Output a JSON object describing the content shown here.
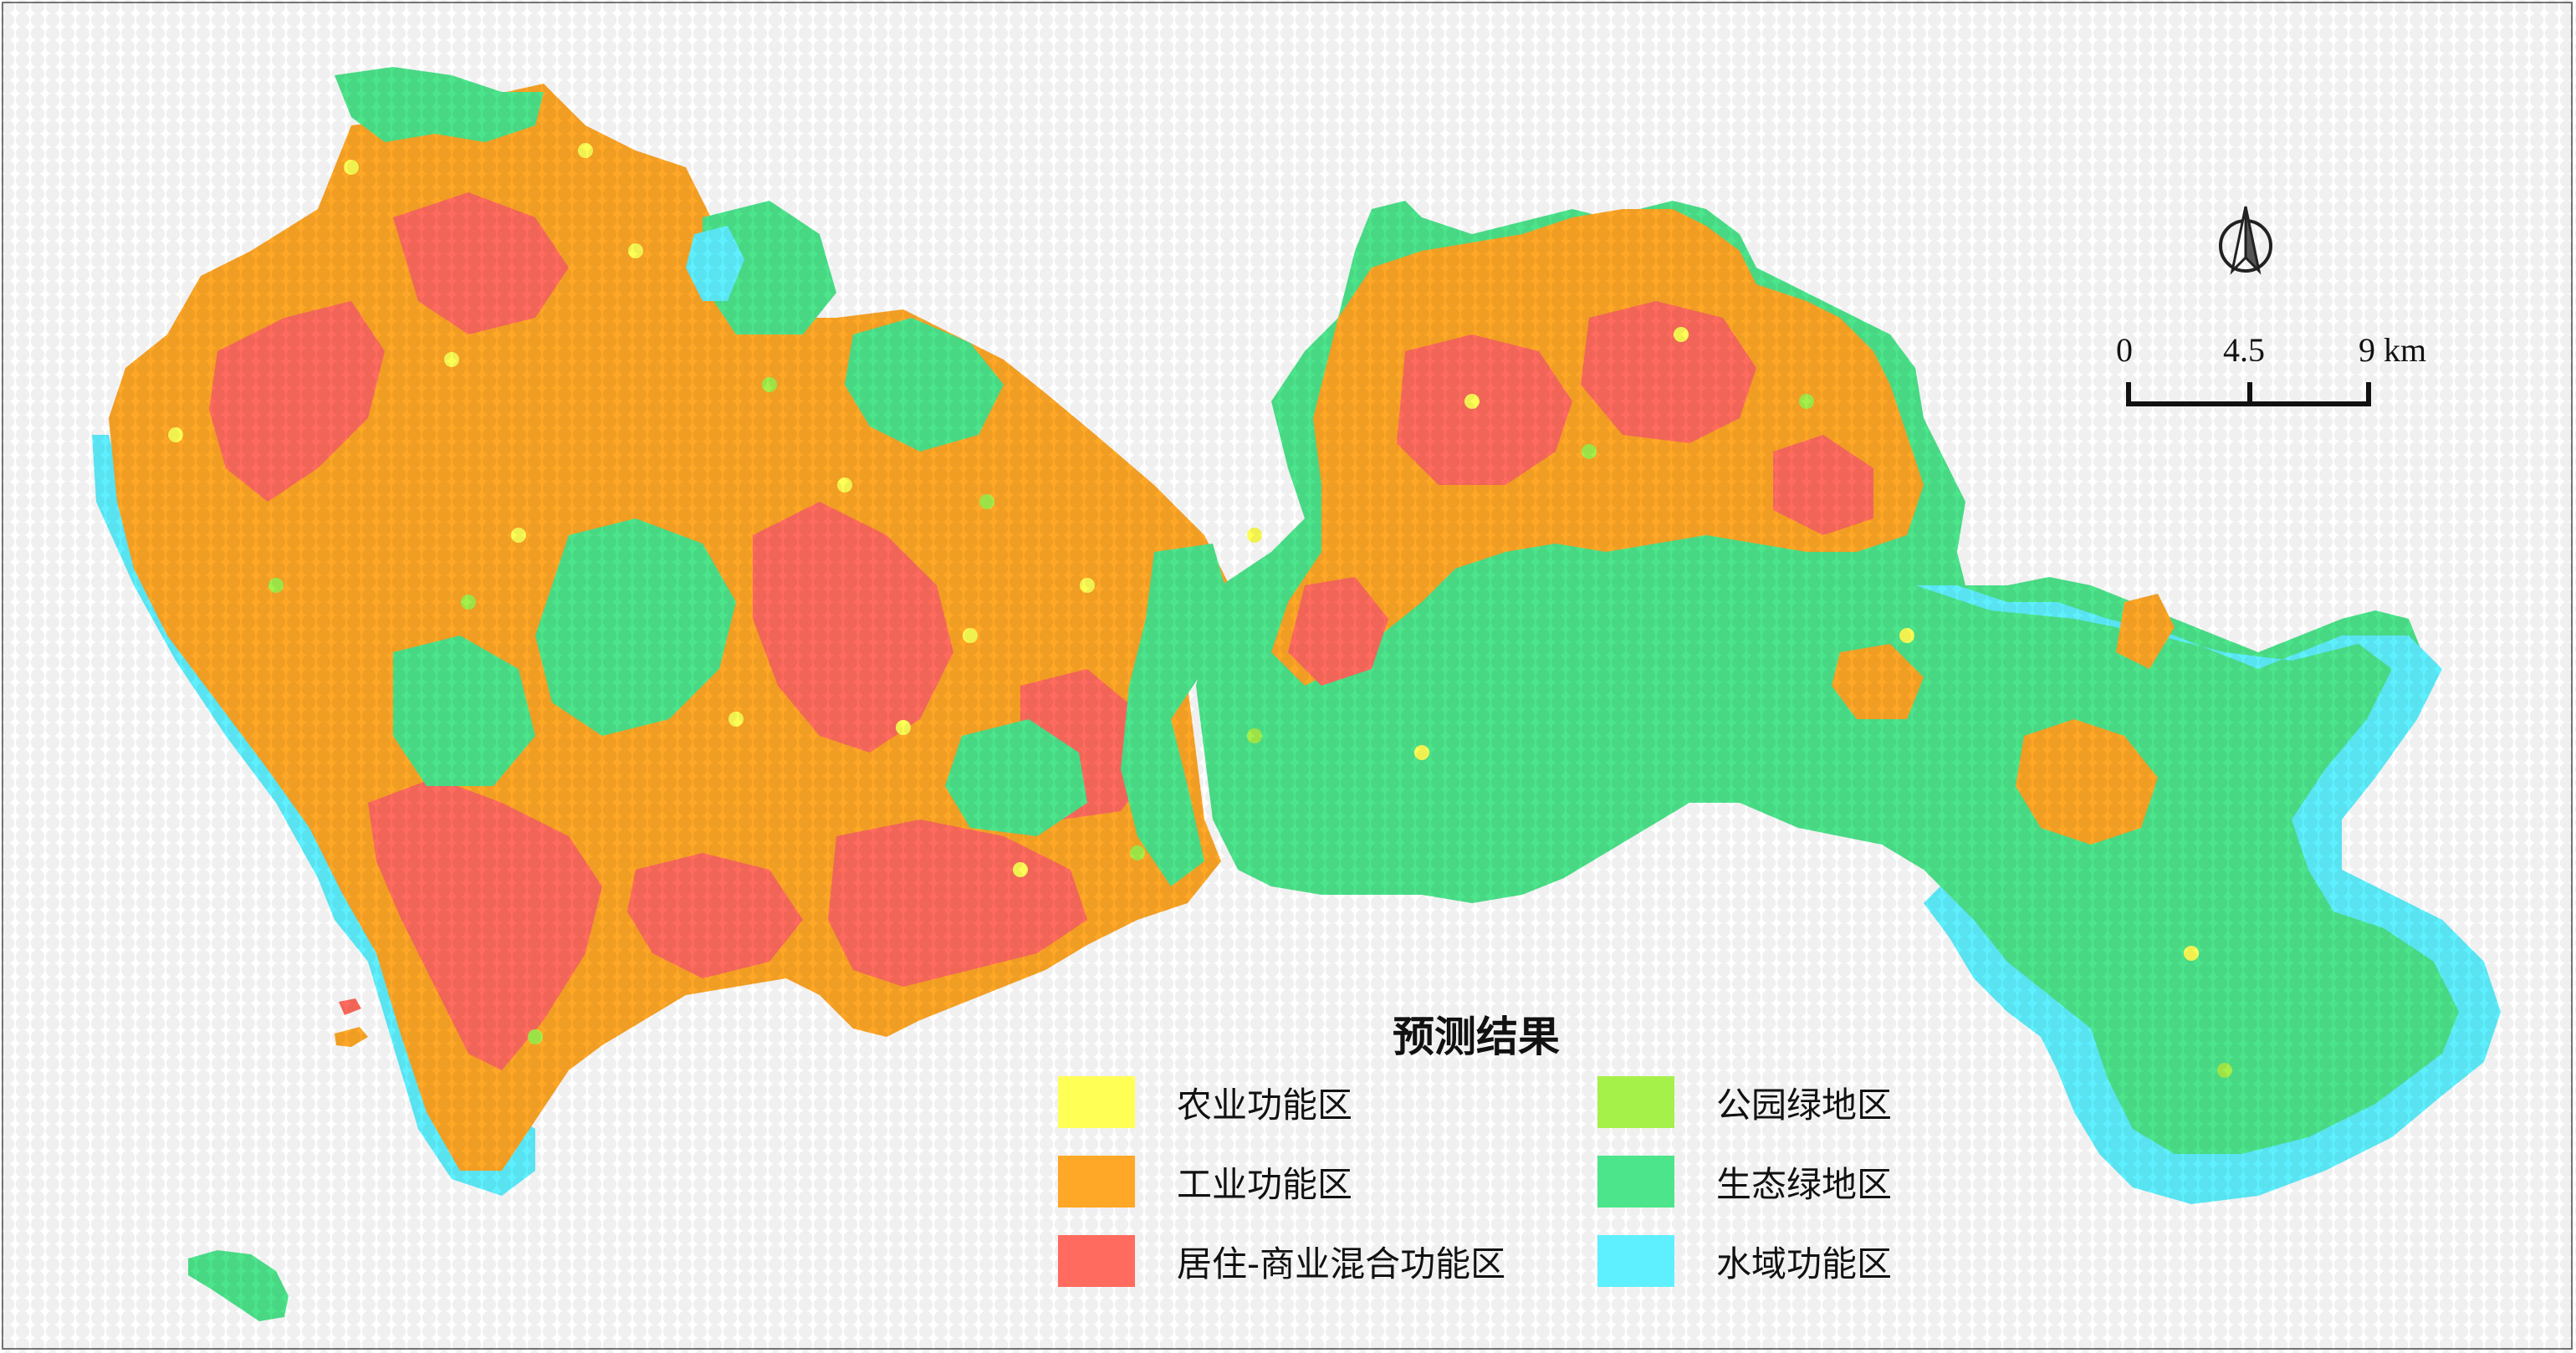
{
  "legend": {
    "title": "预测结果",
    "items": [
      {
        "label": "农业功能区",
        "color": "#ffff55"
      },
      {
        "label": "工业功能区",
        "color": "#ffa726"
      },
      {
        "label": "居住-商业混合功能区",
        "color": "#ff6b5e"
      },
      {
        "label": "公园绿地区",
        "color": "#a6f04a"
      },
      {
        "label": "生态绿地区",
        "color": "#4ce58c"
      },
      {
        "label": "水域功能区",
        "color": "#5ff0ff"
      }
    ]
  },
  "scale_bar": {
    "ticks": [
      "0",
      "4.5",
      "9 km"
    ]
  },
  "north_arrow": {
    "icon": "north-arrow-icon"
  }
}
